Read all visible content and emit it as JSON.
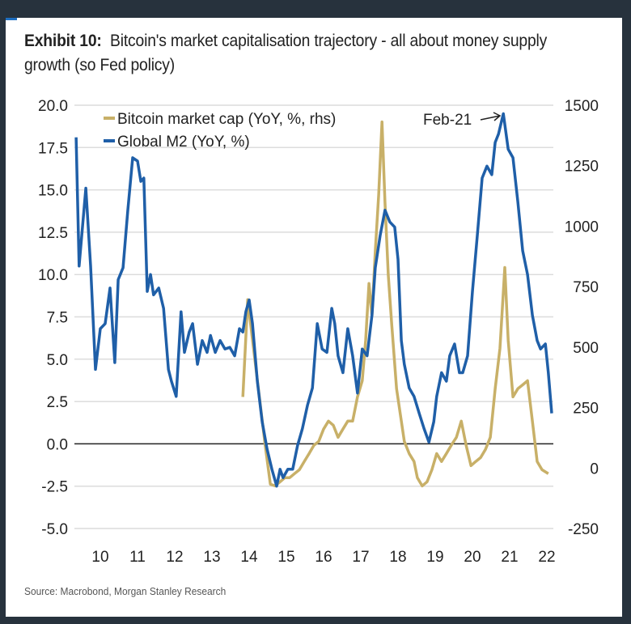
{
  "title": {
    "exhibit": "Exhibit 10:",
    "text": "Bitcoin's market capitalisation trajectory - all about money supply growth (so Fed policy)"
  },
  "source": "Source: Macrobond, Morgan Stanley Research",
  "chart_data": {
    "type": "line",
    "xlabel": "",
    "ylabel": "",
    "y2label": "",
    "x_ticks": [
      "10",
      "11",
      "12",
      "13",
      "14",
      "15",
      "16",
      "17",
      "18",
      "19",
      "20",
      "21",
      "22"
    ],
    "x_tick_years": [
      2010.5,
      2011.5,
      2012.5,
      2013.5,
      2014.5,
      2015.5,
      2016.5,
      2017.5,
      2018.5,
      2019.5,
      2020.5,
      2021.5,
      2022.5
    ],
    "y_ticks": [
      "20.0",
      "17.5",
      "15.0",
      "12.5",
      "10.0",
      "7.5",
      "5.0",
      "2.5",
      "0.0",
      "-2.5",
      "-5.0"
    ],
    "y2_ticks": [
      "1500",
      "1250",
      "1000",
      "750",
      "500",
      "250",
      "0",
      "-250"
    ],
    "ylim": [
      -5,
      20
    ],
    "y2lim": [
      -250,
      1500
    ],
    "xlim": [
      2009.85,
      2022.85
    ],
    "grid": true,
    "zero_line": true,
    "legend_position": "top-left",
    "annotation": {
      "text": "Feb-21",
      "x": 2021.33,
      "y": 19.5
    },
    "series": [
      {
        "name": "Bitcoin market cap (YoY, %, rhs)",
        "axis": "right",
        "color": "#c8b068",
        "x": [
          2014.33,
          2014.46,
          2014.54,
          2014.67,
          2014.8,
          2014.93,
          2015.07,
          2015.2,
          2015.33,
          2015.46,
          2015.59,
          2015.72,
          2015.85,
          2015.98,
          2016.11,
          2016.24,
          2016.37,
          2016.5,
          2016.63,
          2016.76,
          2016.89,
          2017.02,
          2017.15,
          2017.28,
          2017.41,
          2017.54,
          2017.63,
          2017.72,
          2017.8,
          2017.89,
          2017.98,
          2018.07,
          2018.15,
          2018.24,
          2018.33,
          2018.46,
          2018.59,
          2018.67,
          2018.8,
          2018.93,
          2019.02,
          2019.15,
          2019.28,
          2019.41,
          2019.54,
          2019.67,
          2019.8,
          2019.93,
          2020.07,
          2020.2,
          2020.33,
          2020.46,
          2020.59,
          2020.72,
          2020.85,
          2020.98,
          2021.11,
          2021.24,
          2021.37,
          2021.46,
          2021.59,
          2021.72,
          2021.85,
          2021.98,
          2022.11,
          2022.24,
          2022.37,
          2022.54
        ],
        "values": [
          294,
          696,
          595,
          428,
          261,
          94,
          -67,
          -74,
          -57,
          -40,
          -40,
          -23,
          -7,
          27,
          60,
          94,
          110,
          161,
          194,
          177,
          127,
          161,
          194,
          194,
          294,
          361,
          528,
          763,
          629,
          896,
          1130,
          1431,
          1097,
          796,
          595,
          328,
          194,
          110,
          60,
          27,
          -40,
          -74,
          -57,
          -7,
          60,
          27,
          60,
          94,
          127,
          194,
          94,
          10,
          27,
          43,
          77,
          127,
          328,
          495,
          829,
          528,
          294,
          328,
          344,
          361,
          194,
          27,
          -7,
          -23
        ]
      },
      {
        "name": "Global M2 (YoY, %)",
        "axis": "left",
        "color": "#1f5fa8",
        "x": [
          2009.85,
          2009.93,
          2010.11,
          2010.24,
          2010.37,
          2010.5,
          2010.63,
          2010.76,
          2010.89,
          2010.98,
          2011.11,
          2011.24,
          2011.37,
          2011.5,
          2011.59,
          2011.67,
          2011.76,
          2011.85,
          2011.93,
          2012.07,
          2012.2,
          2012.33,
          2012.41,
          2012.54,
          2012.67,
          2012.76,
          2012.89,
          2012.98,
          2013.11,
          2013.24,
          2013.37,
          2013.46,
          2013.59,
          2013.72,
          2013.85,
          2013.98,
          2014.11,
          2014.24,
          2014.33,
          2014.41,
          2014.5,
          2014.59,
          2014.72,
          2014.85,
          2014.98,
          2015.11,
          2015.24,
          2015.33,
          2015.41,
          2015.54,
          2015.67,
          2015.8,
          2015.93,
          2016.07,
          2016.2,
          2016.33,
          2016.46,
          2016.59,
          2016.72,
          2016.8,
          2016.89,
          2017.02,
          2017.15,
          2017.28,
          2017.41,
          2017.54,
          2017.67,
          2017.8,
          2017.89,
          2018.02,
          2018.15,
          2018.28,
          2018.41,
          2018.5,
          2018.59,
          2018.67,
          2018.8,
          2018.93,
          2019.07,
          2019.2,
          2019.33,
          2019.46,
          2019.54,
          2019.67,
          2019.8,
          2019.89,
          2020.02,
          2020.15,
          2020.24,
          2020.37,
          2020.5,
          2020.63,
          2020.76,
          2020.89,
          2021.02,
          2021.11,
          2021.2,
          2021.33,
          2021.46,
          2021.59,
          2021.72,
          2021.85,
          2021.98,
          2022.11,
          2022.24,
          2022.33,
          2022.46,
          2022.54,
          2022.63
        ],
        "values": [
          18.1,
          10.5,
          15.1,
          10.5,
          4.4,
          6.8,
          7.1,
          9.2,
          4.8,
          9.7,
          10.4,
          13.8,
          16.9,
          16.7,
          15.5,
          15.7,
          9.0,
          10.0,
          8.8,
          9.2,
          8.0,
          4.4,
          3.7,
          2.8,
          7.8,
          5.4,
          6.6,
          7.1,
          4.7,
          6.1,
          5.4,
          6.4,
          5.4,
          6.1,
          5.6,
          5.7,
          5.2,
          6.8,
          6.6,
          7.8,
          8.5,
          7.1,
          3.7,
          1.3,
          -0.3,
          -1.5,
          -2.5,
          -1.5,
          -2.0,
          -1.5,
          -1.5,
          -0.1,
          0.9,
          2.3,
          3.3,
          7.1,
          5.6,
          5.4,
          8.0,
          7.1,
          5.2,
          4.2,
          6.8,
          5.2,
          3.0,
          5.6,
          5.2,
          7.6,
          10.4,
          12.3,
          13.8,
          13.1,
          12.8,
          10.9,
          6.1,
          4.7,
          3.3,
          2.8,
          1.8,
          0.9,
          0.1,
          1.3,
          2.8,
          4.2,
          3.7,
          5.2,
          5.9,
          4.2,
          4.2,
          5.2,
          9.0,
          12.3,
          15.7,
          16.4,
          15.9,
          17.8,
          18.3,
          19.5,
          17.4,
          16.9,
          14.3,
          11.4,
          10.0,
          7.6,
          6.1,
          5.6,
          5.9,
          4.2,
          1.8
        ]
      }
    ]
  }
}
